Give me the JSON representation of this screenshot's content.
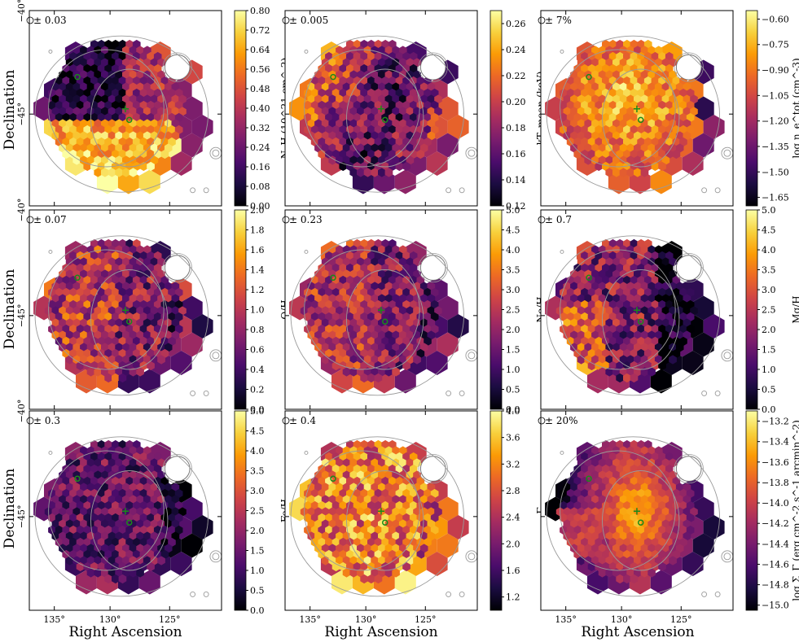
{
  "figure": {
    "xlabel": "Right Ascension",
    "ylabel": "Declination",
    "x_ticks": [
      "135°",
      "130°",
      "125°"
    ],
    "y_ticks": [
      "−40°",
      "−45°"
    ],
    "cmap": [
      "#000004",
      "#1b0c41",
      "#4a0c6b",
      "#781c6d",
      "#a52c60",
      "#cf4446",
      "#ed6925",
      "#fb9b06",
      "#f7d13d",
      "#fcffa4"
    ],
    "contour_color": "#9a9a9a",
    "marker_color": "#1a8a1a"
  },
  "chart_data": [
    {
      "type": "heatmap",
      "name": "nh",
      "uncertainty": "± 0.03",
      "cbar_label": "N_H (10^21 cm^-2)",
      "ticks": [
        "0.00",
        "0.08",
        "0.16",
        "0.24",
        "0.32",
        "0.40",
        "0.48",
        "0.56",
        "0.64",
        "0.72",
        "0.80"
      ],
      "vmin": 0.0,
      "vmax": 0.8,
      "pattern": "nh"
    },
    {
      "type": "heatmap",
      "name": "kt",
      "uncertainty": "± 0.005",
      "cbar_label": "kT_mean (keV)",
      "ticks": [
        "0.12",
        "0.14",
        "0.16",
        "0.18",
        "0.20",
        "0.22",
        "0.24",
        "0.26"
      ],
      "vmin": 0.12,
      "vmax": 0.27,
      "pattern": "kt"
    },
    {
      "type": "heatmap",
      "name": "ne",
      "uncertainty": "± 7%",
      "cbar_label": "log n_e^tot (cm^-3)",
      "ticks": [
        "-1.65",
        "-1.50",
        "-1.35",
        "-1.20",
        "-1.05",
        "-0.90",
        "-0.75",
        "-0.60"
      ],
      "vmin": -1.7,
      "vmax": -0.55,
      "pattern": "ne"
    },
    {
      "type": "heatmap",
      "name": "oh",
      "uncertainty": "± 0.07",
      "cbar_label": "O/H",
      "ticks": [
        "0.0",
        "0.2",
        "0.4",
        "0.6",
        "0.8",
        "1.0",
        "1.2",
        "1.4",
        "1.6",
        "1.8",
        "2.0"
      ],
      "vmin": 0.0,
      "vmax": 2.0,
      "pattern": "oh"
    },
    {
      "type": "heatmap",
      "name": "neh",
      "uncertainty": "± 0.23",
      "cbar_label": "Ne/H",
      "ticks": [
        "0.0",
        "0.5",
        "1.0",
        "1.5",
        "2.0",
        "2.5",
        "3.0",
        "3.5",
        "4.0",
        "4.5",
        "5.0"
      ],
      "vmin": 0.0,
      "vmax": 5.0,
      "pattern": "neh"
    },
    {
      "type": "heatmap",
      "name": "mgh",
      "uncertainty": "± 0.7",
      "cbar_label": "Mg/H",
      "ticks": [
        "0.0",
        "0.5",
        "1.0",
        "1.5",
        "2.0",
        "2.5",
        "3.0",
        "3.5",
        "4.0",
        "4.5",
        "5.0"
      ],
      "vmin": 0.0,
      "vmax": 5.0,
      "pattern": "mgh"
    },
    {
      "type": "heatmap",
      "name": "feh",
      "uncertainty": "± 0.3",
      "cbar_label": "Fe/H",
      "ticks": [
        "0.0",
        "0.5",
        "1.0",
        "1.5",
        "2.0",
        "2.5",
        "3.0",
        "3.5",
        "4.0",
        "4.5",
        "5.0"
      ],
      "vmin": 0.0,
      "vmax": 5.0,
      "pattern": "feh"
    },
    {
      "type": "heatmap",
      "name": "gamma",
      "uncertainty": "± 0.4",
      "cbar_label": "Γ",
      "ticks": [
        "1.2",
        "1.6",
        "2.0",
        "2.4",
        "2.8",
        "3.2",
        "3.6",
        "4.0"
      ],
      "vmin": 1.0,
      "vmax": 4.0,
      "pattern": "gamma"
    },
    {
      "type": "heatmap",
      "name": "sigma",
      "uncertainty": "± 20%",
      "cbar_label": "log Σ_Γ (erg cm^-2 s^-1 arcmin^-2)",
      "ticks": [
        "-15.0",
        "-14.8",
        "-14.6",
        "-14.4",
        "-14.2",
        "-14.0",
        "-13.8",
        "-13.6",
        "-13.4",
        "-13.2"
      ],
      "vmin": -15.05,
      "vmax": -13.1,
      "pattern": "sigma"
    }
  ]
}
